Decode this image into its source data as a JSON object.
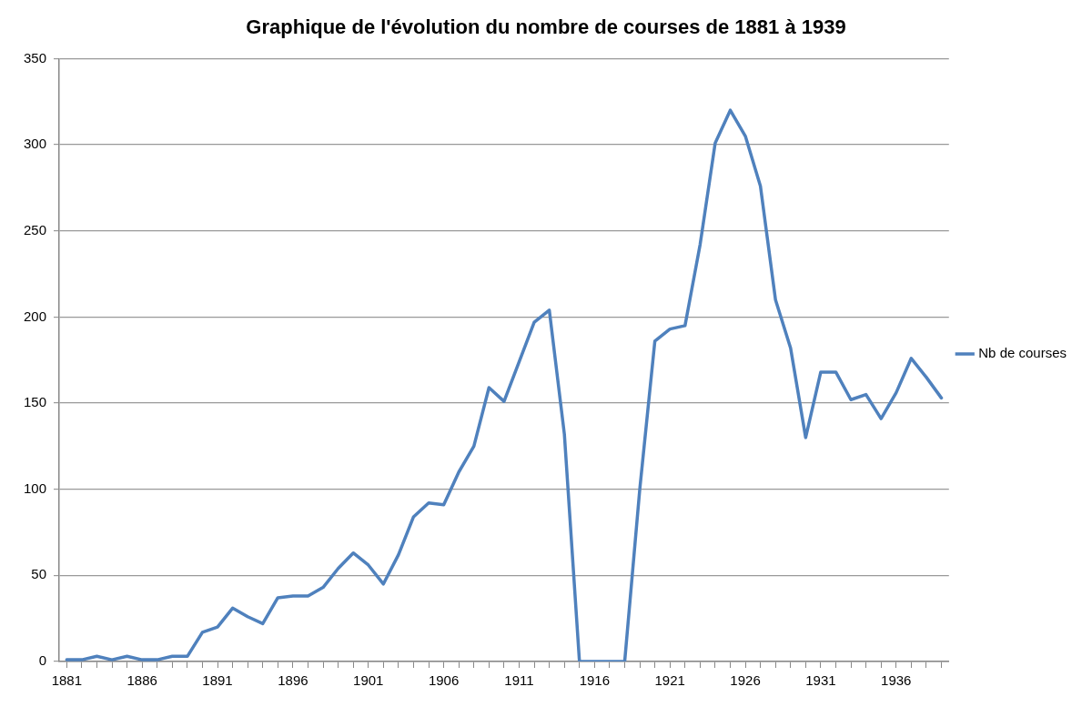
{
  "chart_data": {
    "type": "line",
    "title": "Graphique de l'évolution du nombre de courses de 1881 à 1939",
    "categories": [
      "1881",
      null,
      null,
      null,
      null,
      "1886",
      null,
      null,
      null,
      null,
      "1891",
      null,
      null,
      null,
      null,
      "1896",
      null,
      null,
      null,
      null,
      "1901",
      null,
      null,
      null,
      null,
      "1906",
      null,
      null,
      null,
      null,
      "1911",
      null,
      null,
      null,
      null,
      "1916",
      null,
      null,
      null,
      null,
      "1921",
      null,
      null,
      null,
      null,
      "1926",
      null,
      null,
      null,
      null,
      "1931",
      null,
      null,
      null,
      null,
      "1936",
      null,
      null,
      null
    ],
    "series": [
      {
        "name": "Nb de courses",
        "color": "#4f81bd",
        "values": [
          1,
          1,
          3,
          1,
          3,
          1,
          1,
          3,
          3,
          17,
          20,
          31,
          26,
          22,
          37,
          38,
          38,
          43,
          54,
          63,
          56,
          45,
          62,
          84,
          92,
          91,
          110,
          125,
          159,
          151,
          174,
          197,
          204,
          132,
          0,
          0,
          0,
          0,
          100,
          186,
          193,
          195,
          242,
          301,
          320,
          305,
          276,
          210,
          182,
          130,
          168,
          168,
          152,
          155,
          141,
          156,
          176,
          165,
          153
        ]
      }
    ],
    "ylim": [
      0,
      350
    ],
    "yticks": [
      0,
      50,
      100,
      150,
      200,
      250,
      300,
      350
    ],
    "grid": "y",
    "legend": "right",
    "marker": "none",
    "line_style": "solid"
  }
}
